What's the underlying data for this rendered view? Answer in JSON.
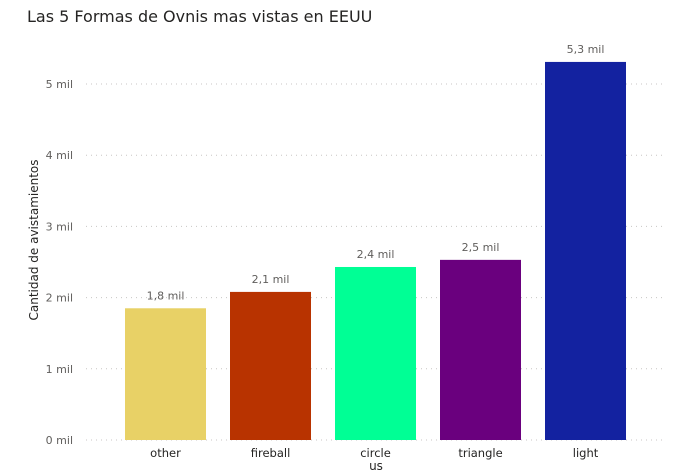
{
  "chart_data": {
    "type": "bar",
    "title": "Las 5 Formas de Ovnis mas vistas en EEUU",
    "xlabel": "us",
    "ylabel": "Cantidad de avistamientos",
    "categories": [
      "other",
      "fireball",
      "circle",
      "triangle",
      "light"
    ],
    "values": [
      1850,
      2080,
      2430,
      2530,
      5310
    ],
    "data_labels": [
      "1,8 mil",
      "2,1 mil",
      "2,4 mil",
      "2,5 mil",
      "5,3 mil"
    ],
    "colors": [
      "#E8D166",
      "#B83300",
      "#00FF95",
      "#6A007E",
      "#1322A0"
    ],
    "ylim": [
      0,
      5600
    ],
    "y_ticks": [
      {
        "value": 0,
        "label": "0 mil"
      },
      {
        "value": 1000,
        "label": "1 mil"
      },
      {
        "value": 2000,
        "label": "2 mil"
      },
      {
        "value": 3000,
        "label": "3 mil"
      },
      {
        "value": 4000,
        "label": "4 mil"
      },
      {
        "value": 5000,
        "label": "5 mil"
      }
    ],
    "grid": true,
    "legend": "none"
  }
}
